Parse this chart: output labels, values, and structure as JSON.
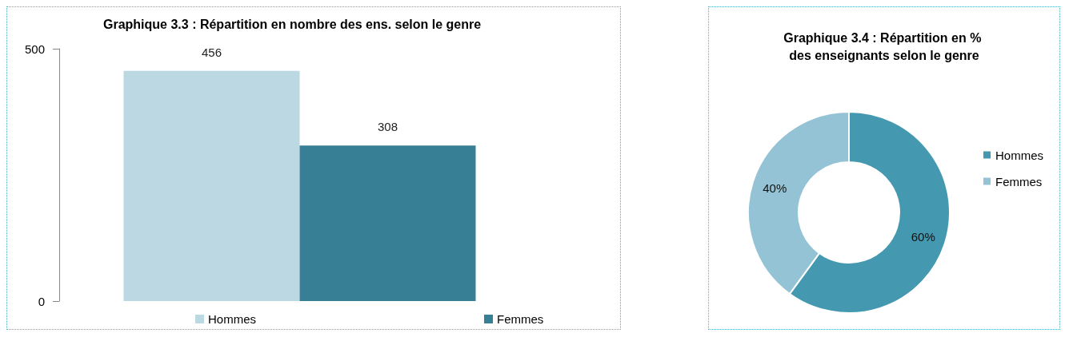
{
  "chart_data": [
    {
      "type": "bar",
      "title": "Graphique 3.3 : Répartition en nombre des ens. selon le genre",
      "categories": [
        null
      ],
      "series": [
        {
          "name": "Hommes",
          "color": "#bcd8e3",
          "values": [
            456
          ]
        },
        {
          "name": "Femmes",
          "color": "#377f95",
          "values": [
            308
          ]
        }
      ],
      "ylim": [
        0,
        500
      ],
      "yticks": [
        0,
        500
      ],
      "grid": false,
      "legend": "bottom",
      "data_labels": true
    },
    {
      "type": "donut",
      "title": "Graphique 3.4 : Répartition en % des enseignants selon le genre",
      "categories": [
        "Hommes",
        "Femmes"
      ],
      "values": [
        60,
        40
      ],
      "colors": [
        "#4499b0",
        "#93c3d4"
      ],
      "value_labels": [
        "60%",
        "40%"
      ],
      "legend": "right"
    }
  ]
}
